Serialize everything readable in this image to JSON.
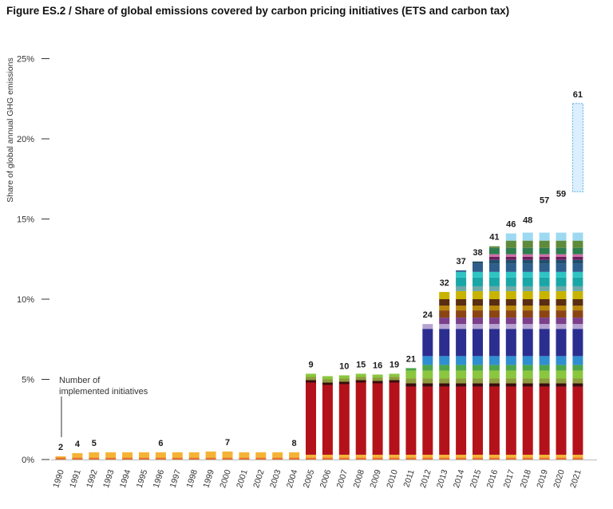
{
  "chart_data": {
    "type": "bar",
    "title": "Figure ES.2 / Share of global emissions covered by carbon pricing initiatives (ETS and carbon tax)",
    "ylabel": "Share of global annual GHG emissions",
    "yticks": [
      "0%",
      "5%",
      "10%",
      "15%",
      "20%",
      "25%"
    ],
    "ylim": [
      0,
      25
    ],
    "annotation": [
      "Number of",
      "implemented initiatives"
    ],
    "categories": [
      "1990",
      "1991",
      "1992",
      "1993",
      "1994",
      "1995",
      "1996",
      "1997",
      "1998",
      "1999",
      "2000",
      "2001",
      "2002",
      "2003",
      "2004",
      "2005",
      "2006",
      "2007",
      "2008",
      "2009",
      "2010",
      "2011",
      "2012",
      "2013",
      "2014",
      "2015",
      "2016",
      "2017",
      "2018",
      "2019",
      "2020",
      "2021"
    ],
    "counts": [
      "2",
      "4",
      "5",
      "",
      "",
      "",
      "6",
      "",
      "",
      "",
      "7",
      "",
      "",
      "",
      "8",
      "9",
      "",
      "10",
      "15",
      "16",
      "19",
      "21",
      "24",
      "32",
      "37",
      "38",
      "41",
      "46",
      "48",
      "57",
      "59",
      "61"
    ],
    "totals": [
      0.2,
      0.4,
      0.45,
      0.45,
      0.45,
      0.45,
      0.45,
      0.45,
      0.45,
      0.5,
      0.5,
      0.45,
      0.45,
      0.45,
      0.45,
      5.35,
      5.2,
      5.25,
      5.35,
      5.3,
      5.35,
      5.7,
      8.45,
      10.45,
      11.8,
      12.35,
      13.3,
      14.1,
      14.35,
      15.6,
      16.0,
      16.7
    ],
    "scheduled_2021": 5.5,
    "grid": false,
    "legend": "none"
  },
  "palette": [
    "#f5b335",
    "#e8732a",
    "#b4121b",
    "#3a0d0d",
    "#8e9a3e",
    "#8bc63f",
    "#4da64a",
    "#2f8fd0",
    "#2b2e8f",
    "#b7a3d1",
    "#7b3f8c",
    "#8b4513",
    "#b8860b",
    "#5b2e12",
    "#c8b400",
    "#6fa8a8",
    "#1aa6a6",
    "#2ec4c4",
    "#2e5e8c",
    "#1f4f6e",
    "#6b1e5c",
    "#d36ca8",
    "#2e7d4f",
    "#5f8a3c",
    "#9dd9f2"
  ],
  "colors": {
    "future_fill": "#dcefff",
    "future_stroke": "#5ab0e6"
  }
}
